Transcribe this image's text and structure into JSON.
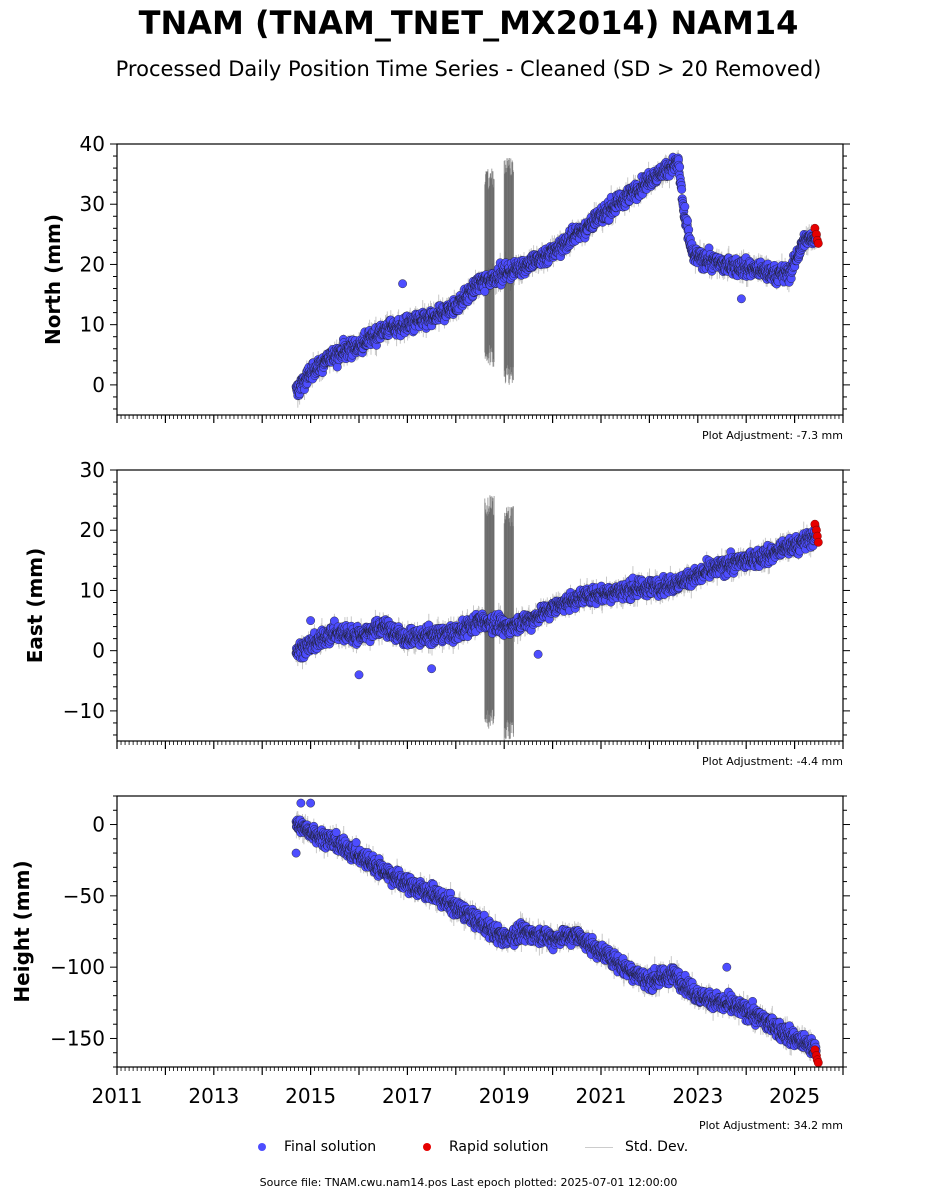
{
  "chart_data": {
    "type": "scatter",
    "title": "TNAM (TNAM_TNET_MX2014) NAM14",
    "subtitle": "Processed Daily Position Time Series - Cleaned (SD > 20 Removed)",
    "x_axis": {
      "range": [
        2011,
        2026
      ],
      "tick_labels": [
        "2011",
        "2013",
        "2015",
        "2017",
        "2019",
        "2021",
        "2023",
        "2025"
      ]
    },
    "panels": [
      {
        "ylabel": "North (mm)",
        "ylim": [
          -5,
          40
        ],
        "yticks": [
          0,
          10,
          20,
          30,
          40
        ],
        "adjustment": "Plot Adjustment: -7.3 mm",
        "trend": [
          [
            2014.7,
            -1
          ],
          [
            2015.0,
            2
          ],
          [
            2015.5,
            5
          ],
          [
            2016.0,
            6.5
          ],
          [
            2016.5,
            9
          ],
          [
            2017.0,
            10
          ],
          [
            2017.5,
            11
          ],
          [
            2018.0,
            13
          ],
          [
            2018.5,
            17
          ],
          [
            2019.0,
            18.5
          ],
          [
            2019.5,
            20
          ],
          [
            2020.0,
            22
          ],
          [
            2020.5,
            25
          ],
          [
            2021.0,
            28
          ],
          [
            2021.5,
            31
          ],
          [
            2022.0,
            34
          ],
          [
            2022.6,
            37
          ],
          [
            2022.72,
            28
          ],
          [
            2022.9,
            21.5
          ],
          [
            2023.5,
            20
          ],
          [
            2024.0,
            19.5
          ],
          [
            2024.5,
            18.5
          ],
          [
            2024.9,
            18.5
          ],
          [
            2025.2,
            24
          ],
          [
            2025.45,
            24.5
          ]
        ],
        "rapid": [
          [
            2025.42,
            26
          ],
          [
            2025.45,
            25
          ],
          [
            2025.47,
            24
          ],
          [
            2025.49,
            23.5
          ]
        ],
        "std_gaps": [
          [
            2018.6,
            2018.8,
            3,
            36
          ],
          [
            2019.0,
            2019.2,
            0,
            38
          ]
        ],
        "outliers": [
          [
            2016.9,
            16.8
          ],
          [
            2018.6,
            15.5
          ],
          [
            2023.9,
            14.3
          ]
        ]
      },
      {
        "ylabel": "East (mm)",
        "ylim": [
          -15,
          30
        ],
        "yticks": [
          -10,
          0,
          10,
          20,
          30
        ],
        "adjustment": "Plot Adjustment: -4.4 mm",
        "trend": [
          [
            2014.7,
            0
          ],
          [
            2015.0,
            1
          ],
          [
            2015.5,
            3
          ],
          [
            2016.0,
            2.5
          ],
          [
            2016.5,
            4
          ],
          [
            2017.0,
            2
          ],
          [
            2017.5,
            2.5
          ],
          [
            2018.0,
            3
          ],
          [
            2018.5,
            5
          ],
          [
            2019.0,
            4
          ],
          [
            2019.5,
            5
          ],
          [
            2020.0,
            7
          ],
          [
            2020.5,
            8.5
          ],
          [
            2021.0,
            9.5
          ],
          [
            2021.5,
            10
          ],
          [
            2022.0,
            10.5
          ],
          [
            2022.5,
            11
          ],
          [
            2023.0,
            12.5
          ],
          [
            2023.5,
            14
          ],
          [
            2024.0,
            15
          ],
          [
            2024.5,
            16
          ],
          [
            2025.0,
            17.5
          ],
          [
            2025.45,
            19
          ]
        ],
        "rapid": [
          [
            2025.42,
            21
          ],
          [
            2025.45,
            20
          ],
          [
            2025.47,
            19
          ],
          [
            2025.49,
            18
          ]
        ],
        "std_gaps": [
          [
            2018.6,
            2018.8,
            -13,
            26
          ],
          [
            2019.0,
            2019.2,
            -15,
            24
          ]
        ],
        "outliers": [
          [
            2015.0,
            5
          ],
          [
            2016.0,
            -4
          ],
          [
            2017.5,
            -3
          ],
          [
            2019.7,
            -0.6
          ]
        ]
      },
      {
        "ylabel": "Height (mm)",
        "ylim": [
          -170,
          20
        ],
        "yticks": [
          0,
          -50,
          -100,
          -150
        ],
        "adjustment": "Plot Adjustment: 34.2 mm",
        "trend": [
          [
            2014.7,
            0
          ],
          [
            2015.0,
            -5
          ],
          [
            2015.5,
            -12
          ],
          [
            2016.0,
            -22
          ],
          [
            2016.5,
            -32
          ],
          [
            2017.0,
            -42
          ],
          [
            2017.5,
            -48
          ],
          [
            2018.0,
            -58
          ],
          [
            2018.5,
            -68
          ],
          [
            2019.0,
            -80
          ],
          [
            2019.5,
            -75
          ],
          [
            2020.0,
            -80
          ],
          [
            2020.5,
            -78
          ],
          [
            2021.0,
            -90
          ],
          [
            2021.5,
            -100
          ],
          [
            2022.0,
            -110
          ],
          [
            2022.5,
            -105
          ],
          [
            2023.0,
            -120
          ],
          [
            2023.5,
            -125
          ],
          [
            2024.0,
            -130
          ],
          [
            2024.5,
            -140
          ],
          [
            2025.0,
            -150
          ],
          [
            2025.45,
            -158
          ]
        ],
        "rapid": [
          [
            2025.42,
            -158
          ],
          [
            2025.45,
            -162
          ],
          [
            2025.47,
            -165
          ],
          [
            2025.49,
            -167
          ]
        ],
        "std_gaps": [],
        "outliers": [
          [
            2014.7,
            -20
          ],
          [
            2014.8,
            15
          ],
          [
            2015.0,
            15
          ],
          [
            2023.6,
            -100
          ]
        ]
      }
    ],
    "legend": {
      "placement": "bottom",
      "final": "Final solution",
      "rapid": "Rapid solution",
      "std": "Std. Dev."
    },
    "footer": "Source file: TNAM.cwu.nam14.pos  Last epoch plotted: 2025-07-01 12:00:00"
  },
  "colors": {
    "final": "#4d4dff",
    "final_edge": "#1a1a1a",
    "rapid": "#e60000",
    "std": "#c8c8c8",
    "std_dark": "#555555"
  }
}
